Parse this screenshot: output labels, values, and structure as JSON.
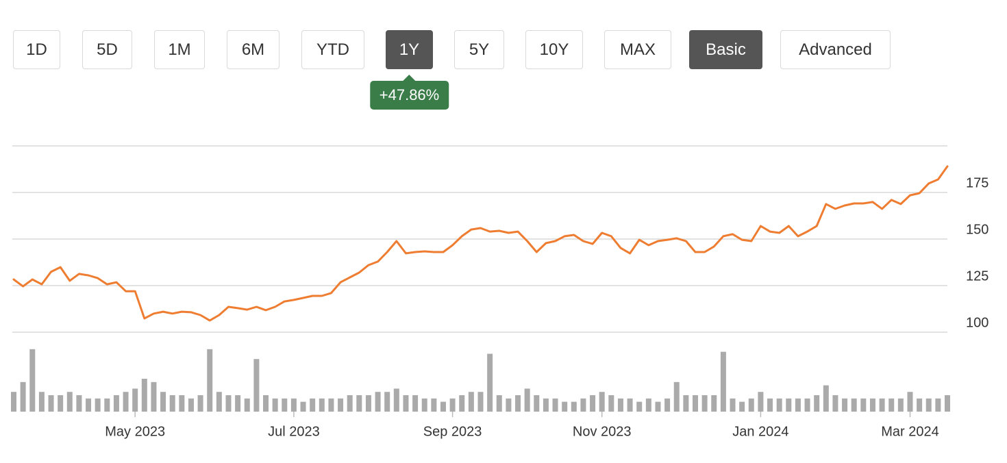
{
  "buttons": [
    {
      "label": "1D",
      "active": false
    },
    {
      "label": "5D",
      "active": false
    },
    {
      "label": "1M",
      "active": false
    },
    {
      "label": "6M",
      "active": false
    },
    {
      "label": "YTD",
      "active": false
    },
    {
      "label": "1Y",
      "active": true
    },
    {
      "label": "5Y",
      "active": false
    },
    {
      "label": "10Y",
      "active": false
    },
    {
      "label": "MAX",
      "active": false
    },
    {
      "label": "Basic",
      "active": true
    },
    {
      "label": "Advanced",
      "active": false
    }
  ],
  "badge": "+47.86%",
  "chart_data": {
    "type": "line",
    "color": "#ee7d31",
    "categories": [
      null,
      null,
      null,
      null,
      null,
      null,
      null,
      null,
      null,
      null,
      null,
      null,
      null,
      "May 2023",
      null,
      null,
      null,
      null,
      null,
      null,
      null,
      null,
      null,
      null,
      null,
      null,
      null,
      null,
      null,
      null,
      "Jul 2023",
      null,
      null,
      null,
      null,
      null,
      null,
      null,
      null,
      null,
      null,
      null,
      null,
      null,
      null,
      null,
      null,
      "Sep 2023",
      null,
      null,
      null,
      null,
      null,
      null,
      null,
      null,
      null,
      null,
      null,
      null,
      null,
      null,
      null,
      "Nov 2023",
      null,
      null,
      null,
      null,
      null,
      null,
      null,
      null,
      null,
      null,
      null,
      null,
      null,
      null,
      null,
      null,
      "Jan 2024",
      null,
      null,
      null,
      null,
      null,
      null,
      null,
      null,
      null,
      null,
      null,
      null,
      null,
      null,
      null,
      "Mar 2024",
      null,
      null,
      null,
      null
    ],
    "values": [
      128.3,
      124.6,
      128.3,
      125.7,
      132.4,
      134.9,
      127.6,
      131.3,
      130.5,
      129,
      125.7,
      126.8,
      122,
      122,
      107.4,
      110,
      111,
      110,
      111,
      110.7,
      109.2,
      106.3,
      109.2,
      113.6,
      112.9,
      112.1,
      113.6,
      111.8,
      113.6,
      116.5,
      117.3,
      118.4,
      119.5,
      119.5,
      121,
      126.8,
      129.4,
      132,
      136,
      137.9,
      143,
      148.9,
      142.3,
      143,
      143.4,
      143,
      143,
      146.7,
      151.5,
      155.1,
      155.9,
      154,
      154.4,
      153.3,
      154,
      148.9,
      143,
      147.8,
      148.9,
      151.5,
      152.2,
      148.9,
      147.4,
      153.3,
      151.5,
      145.2,
      142.3,
      149.6,
      146.7,
      148.9,
      149.6,
      150.4,
      148.9,
      143,
      143,
      146,
      151.5,
      152.6,
      149.6,
      148.9,
      157,
      154,
      153.3,
      157,
      151.5,
      154,
      157,
      168.8,
      166.2,
      168,
      169.1,
      169.1,
      169.9,
      166.2,
      171,
      168.8,
      173.5,
      174.6,
      179.8,
      182,
      189
    ],
    "ylim": [
      100,
      200
    ],
    "yticks": [
      100,
      125,
      150,
      175
    ],
    "grid": true,
    "volume": {
      "color": "#aaaaaa",
      "ylim": [
        0,
        100
      ],
      "values": [
        30,
        45,
        95,
        30,
        25,
        25,
        30,
        25,
        20,
        20,
        20,
        25,
        30,
        35,
        50,
        45,
        30,
        25,
        25,
        20,
        25,
        95,
        30,
        25,
        25,
        20,
        80,
        25,
        20,
        20,
        20,
        15,
        20,
        20,
        20,
        20,
        25,
        25,
        25,
        30,
        30,
        35,
        25,
        25,
        20,
        20,
        15,
        20,
        25,
        30,
        30,
        88,
        25,
        20,
        25,
        35,
        25,
        20,
        20,
        15,
        15,
        20,
        25,
        30,
        25,
        20,
        20,
        15,
        20,
        15,
        20,
        45,
        25,
        25,
        25,
        25,
        91,
        20,
        15,
        20,
        30,
        20,
        20,
        20,
        20,
        20,
        25,
        40,
        25,
        20,
        20,
        20,
        20,
        20,
        20,
        20,
        30,
        20,
        20,
        20,
        25
      ]
    }
  }
}
